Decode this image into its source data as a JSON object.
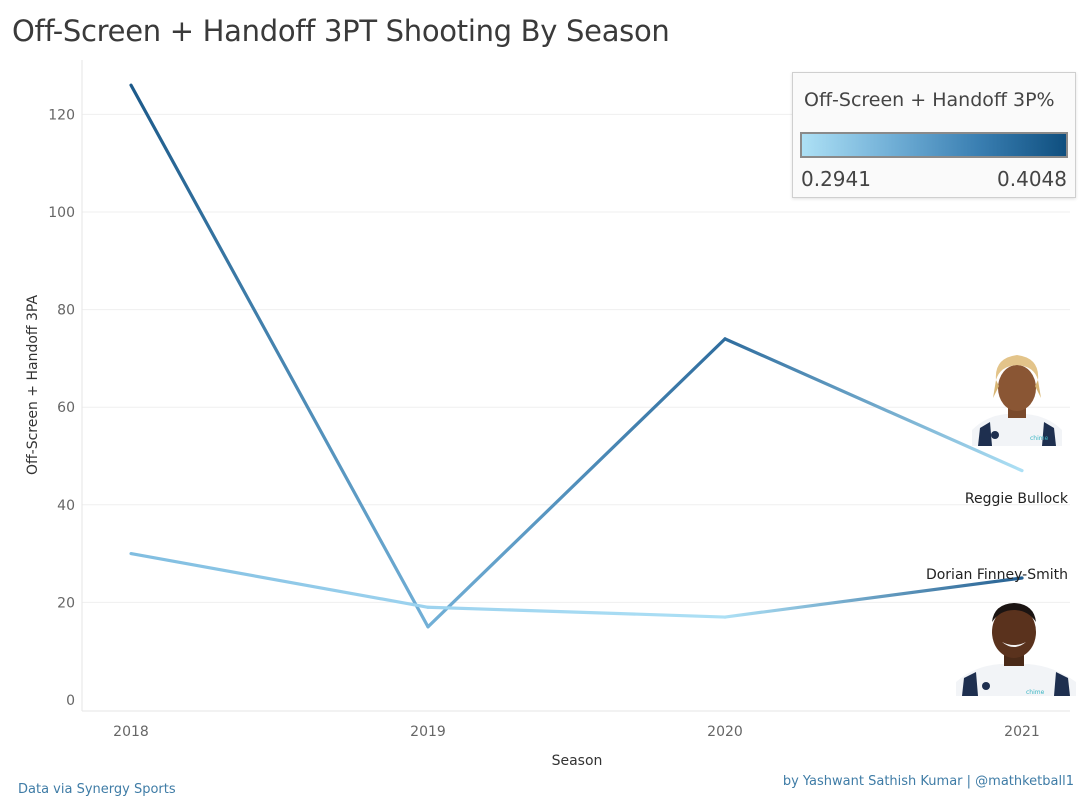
{
  "title": "Off-Screen + Handoff 3PT Shooting By Season",
  "legend": {
    "title": "Off-Screen + Handoff 3P%",
    "min_label": "0.2941",
    "max_label": "0.4048",
    "colors": [
      "#ade0f5",
      "#0f4f7f"
    ]
  },
  "footer": {
    "source": "Data via Synergy Sports",
    "credit": "by Yashwant Sathish Kumar | @mathketball1"
  },
  "chart_data": {
    "type": "line",
    "xlabel": "Season",
    "ylabel": "Off-Screen + Handoff 3PA",
    "x": [
      "2018",
      "2019",
      "2020",
      "2021"
    ],
    "ylim": [
      0,
      130
    ],
    "yticks": [
      "0",
      "20",
      "40",
      "60",
      "80",
      "100",
      "120"
    ],
    "grid": true,
    "color_scale": {
      "min": 0.2941,
      "max": 0.4048
    },
    "series": [
      {
        "name": "Reggie Bullock",
        "values": [
          126,
          15,
          74,
          47
        ],
        "colors": [
          "#1c5a8a",
          "#72b0d7",
          "#2f6d9e",
          "#ade0f5"
        ]
      },
      {
        "name": "Dorian Finney-Smith",
        "values": [
          30,
          19,
          17,
          25
        ],
        "colors": [
          "#80bde0",
          "#9dd3ef",
          "#ade0f5",
          "#245f91"
        ]
      }
    ]
  }
}
